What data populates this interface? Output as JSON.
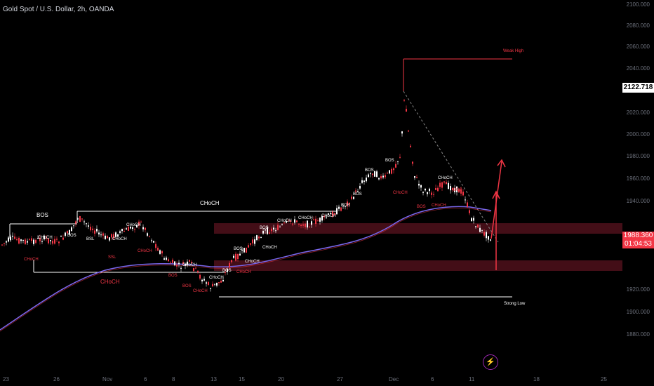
{
  "symbol_title": "Gold Spot / U.S. Dollar, 2h, OANDA",
  "price_axis": {
    "ticks": [
      "2100.000",
      "2080.000",
      "2060.000",
      "2040.000",
      "2020.000",
      "2000.000",
      "1980.000",
      "1960.000",
      "1940.000",
      "1920.000",
      "1900.000",
      "1880.000"
    ],
    "last_high_label": "2122.718",
    "current_price": "1988.360",
    "countdown": "01:04:53"
  },
  "time_axis": {
    "ticks": [
      "23",
      "26",
      "Nov",
      "6",
      "8",
      "13",
      "15",
      "20",
      "27",
      "Dec",
      "6",
      "11",
      "18",
      "25"
    ]
  },
  "annotations": {
    "weak_high": "Weak High",
    "strong_low": "Strong Low",
    "choch_major": "CHoCH",
    "bos_major": "BOS",
    "choch_red_major": "CHoCH",
    "bos": "BOS",
    "choch": "CHoCH",
    "bsl": "BSL",
    "ssl": "SSL"
  },
  "colors": {
    "background": "#000000",
    "bull_candle": "#ffffff",
    "bear_candle": "#f23645",
    "ma_line": "#7b68ee",
    "zone_fill": "#4a0f1a",
    "arrow": "#f23645",
    "last_price_bg": "#ffffff",
    "current_price_bg": "#f23645"
  },
  "icons": {
    "alert": "lightning-icon"
  }
}
